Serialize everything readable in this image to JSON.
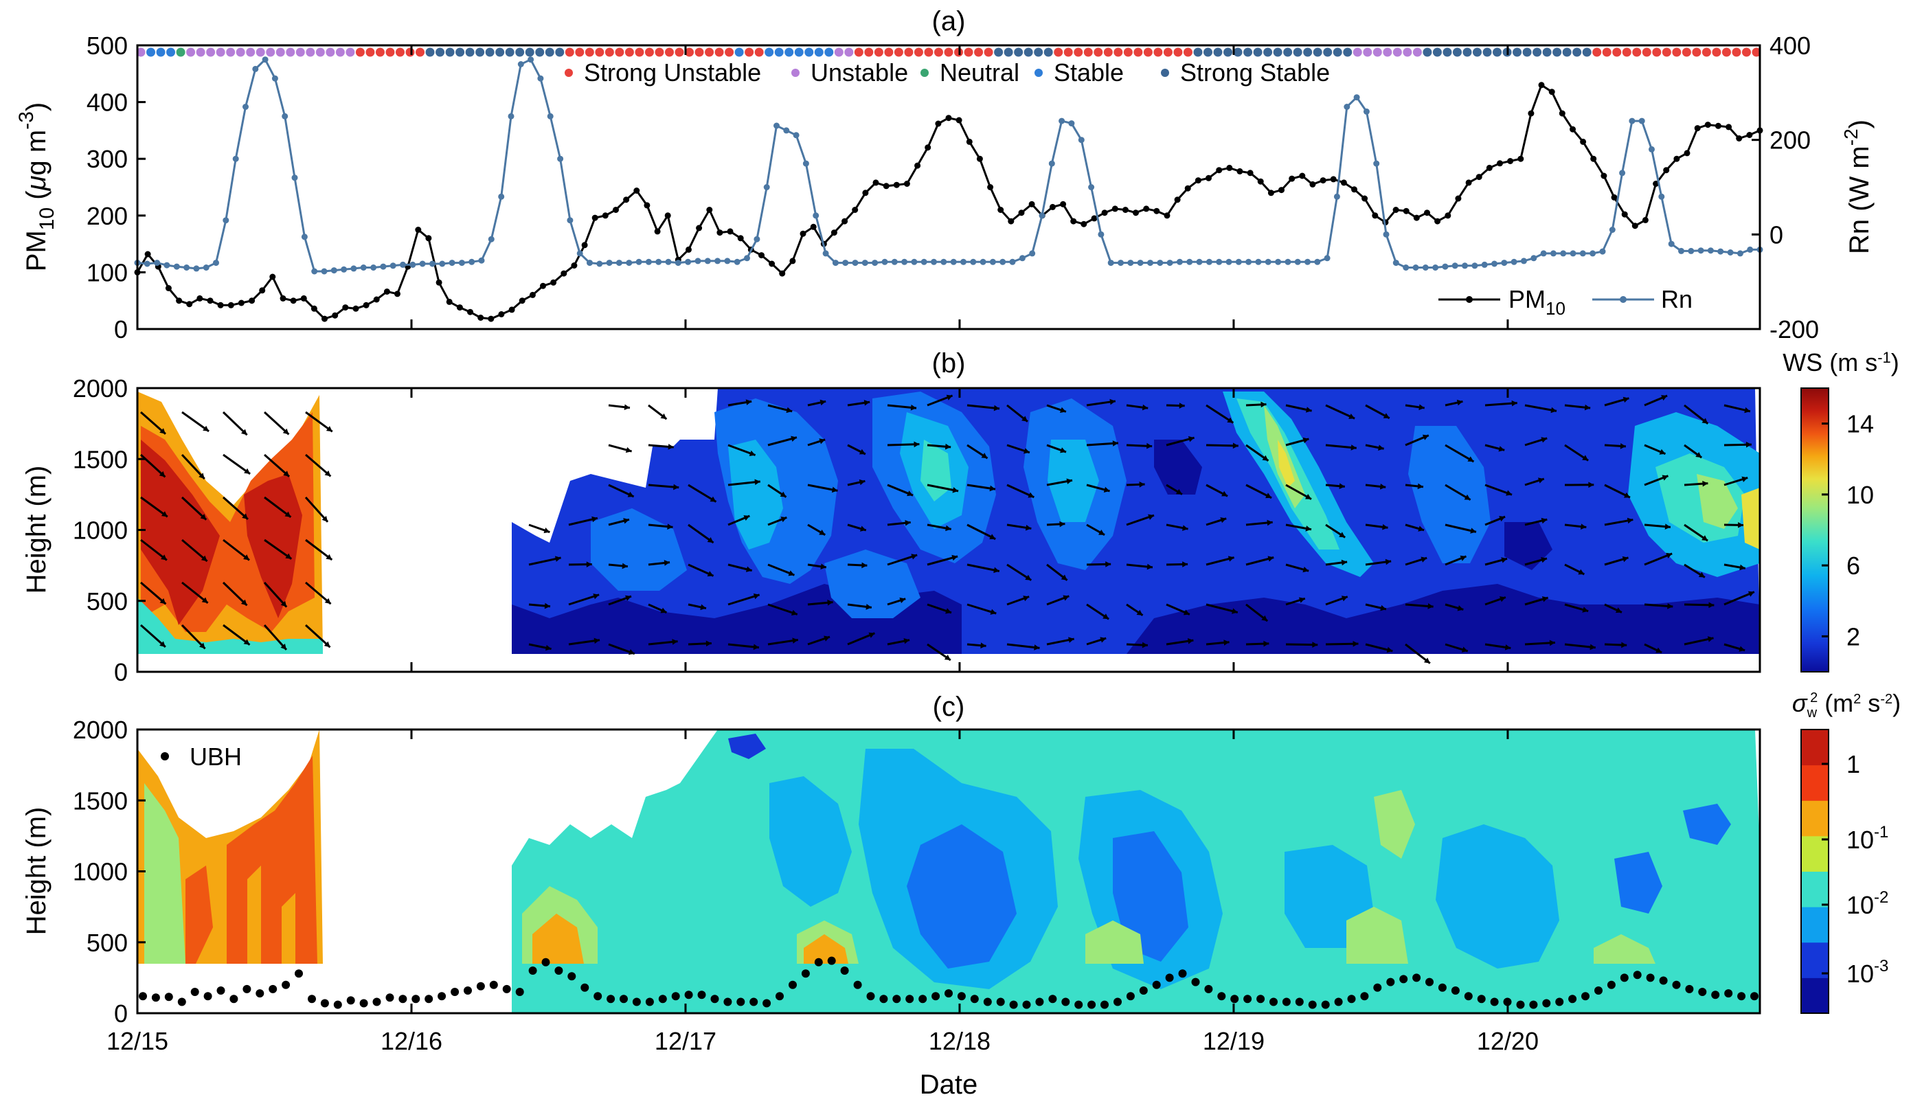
{
  "chart_data": [
    {
      "panel_label": "(a)",
      "type": "line",
      "title": "(a)",
      "ylabel_left": {
        "main": "PM",
        "sub": "10",
        "rest": " (",
        "mu": "μ",
        "unit": "g m",
        "sup": "-3",
        "close": ")"
      },
      "ylabel_right": {
        "main": "Rn (W m",
        "sup": "-2",
        "close": ")"
      },
      "yticks_left": [
        "0",
        "100",
        "200",
        "300",
        "400",
        "500"
      ],
      "ylim_left": [
        0,
        500
      ],
      "yticks_right": [
        "-200",
        "0",
        "200",
        "400"
      ],
      "ylim_right": [
        -200,
        400
      ],
      "x_range_days": [
        0,
        5.92
      ],
      "stability_legend": [
        {
          "label": "Strong Unstable",
          "color": "#e8413b"
        },
        {
          "label": "Unstable",
          "color": "#b57ed8"
        },
        {
          "label": "Neutral",
          "color": "#3aa571"
        },
        {
          "label": "Stable",
          "color": "#2f7ed8"
        },
        {
          "label": "Strong Stable",
          "color": "#3b6694"
        }
      ],
      "stability_sequence": [
        {
          "class": 1,
          "count": 1
        },
        {
          "class": 3,
          "count": 3
        },
        {
          "class": 2,
          "count": 1
        },
        {
          "class": 1,
          "count": 17
        },
        {
          "class": 0,
          "count": 7
        },
        {
          "class": 4,
          "count": 14
        },
        {
          "class": 0,
          "count": 17
        },
        {
          "class": 3,
          "count": 1
        },
        {
          "class": 0,
          "count": 2
        },
        {
          "class": 3,
          "count": 7
        },
        {
          "class": 1,
          "count": 2
        },
        {
          "class": 0,
          "count": 14
        },
        {
          "class": 4,
          "count": 6
        },
        {
          "class": 0,
          "count": 14
        },
        {
          "class": 4,
          "count": 16
        },
        {
          "class": 1,
          "count": 7
        },
        {
          "class": 4,
          "count": 17
        },
        {
          "class": 0,
          "count": 17
        }
      ],
      "legend": [
        {
          "label": "PM",
          "sub": "10",
          "color": "#000000"
        },
        {
          "label": "Rn",
          "color": "#4b77a3"
        }
      ],
      "series": [
        {
          "name": "PM10",
          "color": "#000000",
          "values": [
            100,
            132,
            110,
            72,
            50,
            44,
            54,
            50,
            42,
            42,
            46,
            50,
            68,
            92,
            54,
            50,
            54,
            36,
            18,
            24,
            38,
            36,
            42,
            52,
            66,
            62,
            110,
            175,
            160,
            82,
            48,
            38,
            30,
            20,
            18,
            26,
            34,
            50,
            60,
            76,
            82,
            98,
            112,
            148,
            196,
            200,
            210,
            228,
            244,
            218,
            172,
            200,
            122,
            140,
            178,
            210,
            170,
            172,
            160,
            140,
            130,
            115,
            98,
            120,
            168,
            180,
            150,
            170,
            190,
            210,
            240,
            258,
            252,
            254,
            256,
            288,
            320,
            362,
            372,
            368,
            330,
            300,
            250,
            210,
            190,
            205,
            220,
            200,
            215,
            220,
            190,
            185,
            195,
            205,
            212,
            210,
            205,
            212,
            208,
            200,
            228,
            248,
            262,
            266,
            280,
            284,
            278,
            275,
            260,
            240,
            245,
            265,
            270,
            255,
            262,
            264,
            258,
            246,
            230,
            200,
            188,
            210,
            208,
            196,
            205,
            190,
            200,
            230,
            258,
            268,
            284,
            292,
            296,
            300,
            380,
            430,
            418,
            380,
            352,
            330,
            300,
            270,
            232,
            202,
            182,
            192,
            256,
            280,
            300,
            310,
            354,
            360,
            358,
            356,
            336,
            342,
            350
          ]
        },
        {
          "name": "Rn",
          "color": "#4b77a3",
          "values": [
            -60,
            -62,
            -60,
            -65,
            -68,
            -70,
            -72,
            -70,
            -60,
            30,
            160,
            270,
            350,
            370,
            330,
            250,
            120,
            -5,
            -78,
            -78,
            -76,
            -74,
            -72,
            -70,
            -70,
            -68,
            -66,
            -64,
            -64,
            -62,
            -62,
            -62,
            -60,
            -60,
            -58,
            -55,
            -10,
            80,
            250,
            360,
            370,
            330,
            250,
            160,
            30,
            -40,
            -60,
            -62,
            -60,
            -60,
            -60,
            -58,
            -58,
            -58,
            -58,
            -60,
            -58,
            -56,
            -56,
            -56,
            -56,
            -58,
            -50,
            -10,
            100,
            230,
            220,
            210,
            150,
            40,
            -40,
            -60,
            -60,
            -60,
            -60,
            -60,
            -58,
            -58,
            -58,
            -58,
            -58,
            -58,
            -58,
            -58,
            -58,
            -58,
            -58,
            -58,
            -58,
            -58,
            -50,
            -40,
            40,
            150,
            240,
            235,
            200,
            100,
            0,
            -60,
            -60,
            -60,
            -60,
            -60,
            -60,
            -60,
            -58,
            -58,
            -58,
            -58,
            -58,
            -58,
            -58,
            -58,
            -58,
            -58,
            -58,
            -58,
            -58,
            -58,
            -58,
            -50,
            80,
            270,
            290,
            260,
            150,
            0,
            -60,
            -70,
            -70,
            -70,
            -70,
            -68,
            -66,
            -66,
            -66,
            -64,
            -62,
            -60,
            -58,
            -56,
            -50,
            -40,
            -40,
            -40,
            -40,
            -40,
            -40,
            -36,
            10,
            130,
            240,
            240,
            180,
            80,
            -20,
            -35,
            -35,
            -34,
            -34,
            -36,
            -38,
            -40,
            -32,
            -32
          ]
        }
      ]
    },
    {
      "panel_label": "(b)",
      "type": "heatmap",
      "title": "(b)",
      "ylabel": "Height (m)",
      "yticks": [
        "0",
        "500",
        "1000",
        "1500",
        "2000"
      ],
      "ylim": [
        0,
        2000
      ],
      "colorbar_title": {
        "main": "WS (m s",
        "sup": "-1",
        "close": ")"
      },
      "colorbar_ticks": [
        "2",
        "6",
        "10",
        "14"
      ],
      "colorbar_range": [
        0,
        16
      ],
      "colormap": [
        "#0a0e9c",
        "#1537d8",
        "#1272f2",
        "#0fb2ee",
        "#3bdfc9",
        "#9ee87a",
        "#e8e040",
        "#f5a712",
        "#ef5712",
        "#c51d10",
        "#8c0a0a"
      ],
      "description_of_wind_arrows": "wind vectors overlaid"
    },
    {
      "panel_label": "(c)",
      "type": "heatmap",
      "title": "(c)",
      "ylabel": "Height (m)",
      "xlabel": "Date",
      "yticks": [
        "0",
        "500",
        "1000",
        "1500",
        "2000"
      ],
      "ylim": [
        0,
        2000
      ],
      "colorbar_title": {
        "sigma": "σ",
        "sub": "w",
        "sup": "2",
        "unit": " (m",
        "sup2": "2",
        "mid": " s",
        "sup3": "-2",
        "close": ")"
      },
      "colorbar_ticks": [
        {
          "base": "1",
          "exp": ""
        },
        {
          "base": "10",
          "exp": "-1"
        },
        {
          "base": "10",
          "exp": "-2"
        },
        {
          "base": "10",
          "exp": "-3"
        }
      ],
      "legend": [
        {
          "label": "UBH",
          "marker": "dot",
          "color": "#000000"
        }
      ],
      "xticks": [
        "12/15",
        "12/16",
        "12/17",
        "12/18",
        "12/19",
        "12/20"
      ],
      "ubh_values": [
        120,
        110,
        115,
        80,
        150,
        120,
        160,
        100,
        170,
        140,
        170,
        200,
        280,
        100,
        70,
        60,
        90,
        70,
        80,
        110,
        100,
        100,
        100,
        120,
        150,
        160,
        190,
        200,
        170,
        150,
        300,
        360,
        300,
        260,
        180,
        120,
        100,
        100,
        80,
        80,
        100,
        120,
        130,
        130,
        100,
        80,
        80,
        80,
        70,
        120,
        200,
        280,
        360,
        370,
        300,
        200,
        120,
        100,
        100,
        100,
        100,
        120,
        140,
        120,
        100,
        80,
        80,
        60,
        60,
        80,
        100,
        80,
        60,
        60,
        60,
        80,
        120,
        160,
        200,
        250,
        280,
        220,
        170,
        120,
        100,
        100,
        100,
        80,
        80,
        80,
        60,
        60,
        80,
        100,
        120,
        180,
        220,
        240,
        250,
        220,
        180,
        160,
        120,
        100,
        80,
        80,
        60,
        60,
        70,
        80,
        100,
        120,
        160,
        200,
        250,
        270,
        250,
        230,
        200,
        170,
        150,
        130,
        140,
        120,
        120
      ]
    }
  ]
}
